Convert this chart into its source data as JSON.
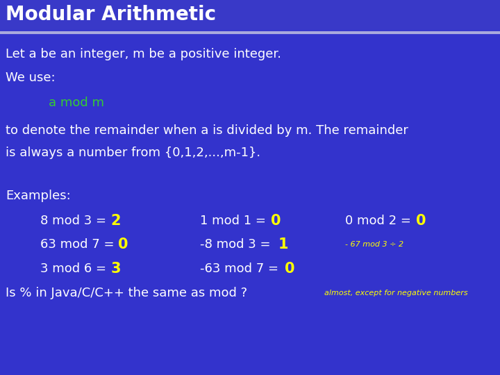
{
  "title": "Modular Arithmetic",
  "bg_color": "#3333CC",
  "title_underline_color": "#AAAADD",
  "body_text_color": "#FFFFFF",
  "green_color": "#33CC33",
  "yellow_color": "#FFFF00",
  "line1": "Let a be an integer, m be a positive integer.",
  "line2": "We use:",
  "line3_green": "a mod m",
  "line4": "to denote the remainder when a is divided by m. The remainder",
  "line5": "is always a number from {0,1,2,...,m-1}.",
  "line6": "Examples:",
  "examples": [
    {
      "col": 0.08,
      "row": 0,
      "text": "8 mod 3 = ",
      "answer": "2",
      "ans_color": "#FFFF00"
    },
    {
      "col": 0.4,
      "row": 0,
      "text": "1 mod 1 = ",
      "answer": "0",
      "ans_color": "#FFFF00"
    },
    {
      "col": 0.69,
      "row": 0,
      "text": "0 mod 2 = ",
      "answer": "0",
      "ans_color": "#FFFF00"
    },
    {
      "col": 0.08,
      "row": 1,
      "text": "63 mod 7 = ",
      "answer": "0",
      "ans_color": "#FFFF00"
    },
    {
      "col": 0.4,
      "row": 1,
      "text": "-8 mod 3 = ",
      "answer": "1",
      "ans_color": "#FFFF00"
    },
    {
      "col": 0.69,
      "row": 1,
      "text": "- 67 mod 3 ÷ 2",
      "answer": "",
      "ans_color": "#FFFF00",
      "whole_yellow": true
    },
    {
      "col": 0.08,
      "row": 2,
      "text": "3 mod 6 = ",
      "answer": "3",
      "ans_color": "#FFFF00"
    },
    {
      "col": 0.4,
      "row": 2,
      "text": "-63 mod 7 = ",
      "answer": "0",
      "ans_color": "#FFFF00"
    }
  ],
  "last_line_white": "Is % in Java/C/C++ the same as mod ?",
  "last_line_yellow": "  almost, except for negative numbers"
}
